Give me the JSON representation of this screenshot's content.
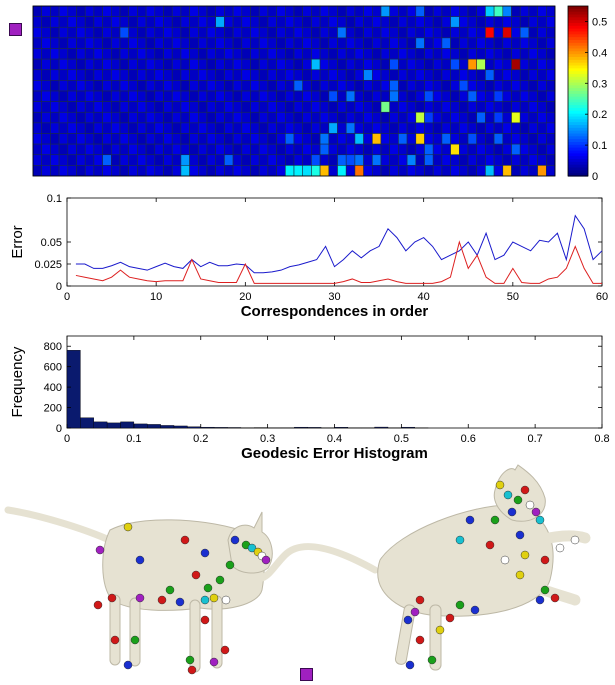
{
  "markers": [
    {
      "name": "selection-marker-top-left",
      "color": "#a020c0"
    },
    {
      "name": "selection-marker-bottom",
      "color": "#a020c0"
    }
  ],
  "chart_data": [
    {
      "type": "heatmap",
      "rows": 16,
      "cols": 60,
      "colorbar": {
        "min": 0,
        "max": 0.55,
        "ticks": [
          0,
          0.1,
          0.2,
          0.3,
          0.4,
          0.5
        ],
        "tick_labels": [
          "0",
          "0.1",
          "0.2",
          "0.3",
          "0.4",
          "0.5"
        ]
      },
      "base_value": 0.04,
      "highlights": [
        {
          "r": 0,
          "c": 52,
          "v": 0.18
        },
        {
          "r": 0,
          "c": 40,
          "v": 0.15
        },
        {
          "r": 0,
          "c": 44,
          "v": 0.12
        },
        {
          "r": 0,
          "c": 53,
          "v": 0.24
        },
        {
          "r": 0,
          "c": 54,
          "v": 0.14
        },
        {
          "r": 1,
          "c": 21,
          "v": 0.16
        },
        {
          "r": 1,
          "c": 48,
          "v": 0.15
        },
        {
          "r": 2,
          "c": 10,
          "v": 0.11
        },
        {
          "r": 2,
          "c": 35,
          "v": 0.13
        },
        {
          "r": 2,
          "c": 52,
          "v": 0.48
        },
        {
          "r": 2,
          "c": 54,
          "v": 0.5
        },
        {
          "r": 2,
          "c": 56,
          "v": 0.12
        },
        {
          "r": 3,
          "c": 44,
          "v": 0.13
        },
        {
          "r": 3,
          "c": 47,
          "v": 0.12
        },
        {
          "r": 5,
          "c": 32,
          "v": 0.17
        },
        {
          "r": 5,
          "c": 41,
          "v": 0.11
        },
        {
          "r": 5,
          "c": 48,
          "v": 0.11
        },
        {
          "r": 5,
          "c": 50,
          "v": 0.4
        },
        {
          "r": 5,
          "c": 51,
          "v": 0.3
        },
        {
          "r": 5,
          "c": 55,
          "v": 0.53
        },
        {
          "r": 6,
          "c": 38,
          "v": 0.14
        },
        {
          "r": 6,
          "c": 52,
          "v": 0.12
        },
        {
          "r": 7,
          "c": 30,
          "v": 0.12
        },
        {
          "r": 7,
          "c": 41,
          "v": 0.12
        },
        {
          "r": 7,
          "c": 49,
          "v": 0.11
        },
        {
          "r": 8,
          "c": 34,
          "v": 0.11
        },
        {
          "r": 8,
          "c": 36,
          "v": 0.13
        },
        {
          "r": 8,
          "c": 41,
          "v": 0.13
        },
        {
          "r": 8,
          "c": 45,
          "v": 0.11
        },
        {
          "r": 8,
          "c": 50,
          "v": 0.12
        },
        {
          "r": 8,
          "c": 53,
          "v": 0.1
        },
        {
          "r": 9,
          "c": 40,
          "v": 0.27
        },
        {
          "r": 10,
          "c": 44,
          "v": 0.31
        },
        {
          "r": 10,
          "c": 45,
          "v": 0.1
        },
        {
          "r": 10,
          "c": 51,
          "v": 0.12
        },
        {
          "r": 10,
          "c": 53,
          "v": 0.1
        },
        {
          "r": 10,
          "c": 55,
          "v": 0.33
        },
        {
          "r": 11,
          "c": 34,
          "v": 0.16
        },
        {
          "r": 11,
          "c": 36,
          "v": 0.13
        },
        {
          "r": 12,
          "c": 29,
          "v": 0.12
        },
        {
          "r": 12,
          "c": 33,
          "v": 0.13
        },
        {
          "r": 12,
          "c": 37,
          "v": 0.17
        },
        {
          "r": 12,
          "c": 39,
          "v": 0.38
        },
        {
          "r": 12,
          "c": 42,
          "v": 0.12
        },
        {
          "r": 12,
          "c": 44,
          "v": 0.37
        },
        {
          "r": 12,
          "c": 47,
          "v": 0.12
        },
        {
          "r": 12,
          "c": 50,
          "v": 0.11
        },
        {
          "r": 12,
          "c": 53,
          "v": 0.12
        },
        {
          "r": 13,
          "c": 33,
          "v": 0.12
        },
        {
          "r": 13,
          "c": 45,
          "v": 0.12
        },
        {
          "r": 13,
          "c": 48,
          "v": 0.36
        },
        {
          "r": 13,
          "c": 55,
          "v": 0.12
        },
        {
          "r": 14,
          "c": 8,
          "v": 0.12
        },
        {
          "r": 14,
          "c": 17,
          "v": 0.15
        },
        {
          "r": 14,
          "c": 22,
          "v": 0.12
        },
        {
          "r": 14,
          "c": 32,
          "v": 0.11
        },
        {
          "r": 14,
          "c": 35,
          "v": 0.12
        },
        {
          "r": 14,
          "c": 36,
          "v": 0.11
        },
        {
          "r": 14,
          "c": 37,
          "v": 0.13
        },
        {
          "r": 14,
          "c": 39,
          "v": 0.13
        },
        {
          "r": 14,
          "c": 43,
          "v": 0.14
        },
        {
          "r": 14,
          "c": 45,
          "v": 0.12
        },
        {
          "r": 15,
          "c": 17,
          "v": 0.17
        },
        {
          "r": 15,
          "c": 29,
          "v": 0.2
        },
        {
          "r": 15,
          "c": 30,
          "v": 0.2
        },
        {
          "r": 15,
          "c": 31,
          "v": 0.19
        },
        {
          "r": 15,
          "c": 32,
          "v": 0.22
        },
        {
          "r": 15,
          "c": 33,
          "v": 0.38
        },
        {
          "r": 15,
          "c": 35,
          "v": 0.2
        },
        {
          "r": 15,
          "c": 37,
          "v": 0.42
        },
        {
          "r": 15,
          "c": 52,
          "v": 0.17
        },
        {
          "r": 15,
          "c": 54,
          "v": 0.38
        },
        {
          "r": 15,
          "c": 58,
          "v": 0.4
        }
      ]
    },
    {
      "type": "line",
      "ylabel": "Error",
      "xlabel": "Correspondences in order",
      "xlim": [
        0,
        60
      ],
      "ylim": [
        0,
        0.1
      ],
      "xticks": [
        0,
        10,
        20,
        30,
        40,
        50,
        60
      ],
      "yticks": [
        0,
        0.025,
        0.05,
        0.1
      ],
      "ytick_labels": [
        "0",
        "0.025",
        "0.05",
        "0.1"
      ],
      "x": [
        1,
        2,
        3,
        4,
        5,
        6,
        7,
        8,
        9,
        10,
        11,
        12,
        13,
        14,
        15,
        16,
        17,
        18,
        19,
        20,
        21,
        22,
        23,
        24,
        25,
        26,
        27,
        28,
        29,
        30,
        31,
        32,
        33,
        34,
        35,
        36,
        37,
        38,
        39,
        40,
        41,
        42,
        43,
        44,
        45,
        46,
        47,
        48,
        49,
        50,
        51,
        52,
        53,
        54,
        55,
        56,
        57,
        58,
        59,
        60
      ],
      "series": [
        {
          "color": "#1a1acc",
          "values": [
            0.025,
            0.025,
            0.02,
            0.02,
            0.023,
            0.027,
            0.022,
            0.02,
            0.018,
            0.022,
            0.026,
            0.022,
            0.02,
            0.03,
            0.022,
            0.027,
            0.023,
            0.023,
            0.025,
            0.024,
            0.015,
            0.015,
            0.016,
            0.018,
            0.022,
            0.024,
            0.027,
            0.03,
            0.045,
            0.022,
            0.03,
            0.04,
            0.032,
            0.04,
            0.045,
            0.065,
            0.055,
            0.04,
            0.05,
            0.055,
            0.045,
            0.03,
            0.035,
            0.04,
            0.05,
            0.035,
            0.06,
            0.03,
            0.035,
            0.05,
            0.045,
            0.04,
            0.052,
            0.05,
            0.06,
            0.03,
            0.08,
            0.065,
            0.03,
            0.04
          ]
        },
        {
          "color": "#dd2020",
          "values": [
            0.012,
            0.01,
            0.008,
            0.006,
            0.01,
            0.018,
            0.01,
            0.008,
            0.006,
            0.005,
            0.006,
            0.006,
            0.006,
            0.03,
            0.008,
            0.006,
            0.004,
            0.004,
            0.004,
            0.025,
            0.003,
            0.003,
            0.003,
            0.003,
            0.003,
            0.003,
            0.003,
            0.003,
            0.003,
            0.003,
            0.005,
            0.008,
            0.004,
            0.004,
            0.006,
            0.008,
            0.005,
            0.003,
            0.003,
            0.003,
            0.003,
            0.005,
            0.01,
            0.05,
            0.02,
            0.035,
            0.01,
            0.003,
            0.003,
            0.02,
            0.004,
            0.003,
            0.003,
            0.008,
            0.01,
            0.02,
            0.045,
            0.02,
            0.003,
            0.003
          ]
        }
      ]
    },
    {
      "type": "bar",
      "ylabel": "Frequency",
      "xlabel": "Geodesic Error Histogram",
      "xlim": [
        0,
        0.8
      ],
      "ylim": [
        0,
        900
      ],
      "xticks": [
        0,
        0.1,
        0.2,
        0.3,
        0.4,
        0.5,
        0.6,
        0.7,
        0.8
      ],
      "yticks": [
        0,
        200,
        400,
        600,
        800
      ],
      "bin_width": 0.02,
      "bin_starts": [
        0,
        0.02,
        0.04,
        0.06,
        0.08,
        0.1,
        0.12,
        0.14,
        0.16,
        0.18,
        0.2,
        0.22,
        0.24,
        0.26,
        0.28,
        0.3,
        0.32,
        0.34,
        0.36,
        0.38,
        0.4,
        0.42,
        0.44,
        0.46,
        0.48,
        0.5,
        0.52
      ],
      "values": [
        760,
        100,
        60,
        50,
        60,
        40,
        35,
        25,
        20,
        12,
        8,
        6,
        5,
        3,
        4,
        2,
        3,
        8,
        6,
        2,
        7,
        2,
        2,
        9,
        3,
        8,
        2
      ],
      "color": "#0a1a6e"
    }
  ]
}
